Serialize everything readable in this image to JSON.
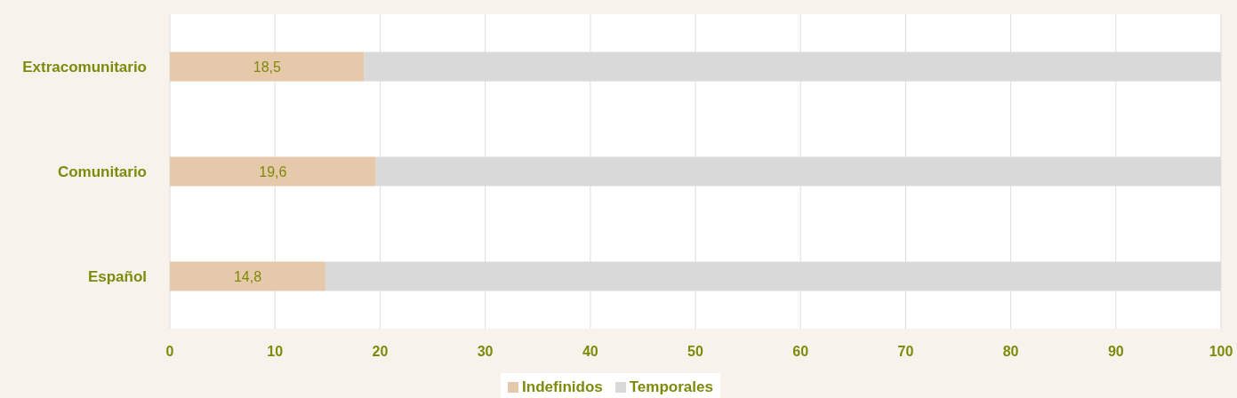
{
  "chart_data": {
    "type": "bar",
    "orientation": "horizontal",
    "stacked": true,
    "categories": [
      "Extracomunitario",
      "Comunitario",
      "Español"
    ],
    "series": [
      {
        "name": "Indefinidos",
        "color": "#e6c9aa",
        "values": [
          18.5,
          19.6,
          14.8
        ],
        "value_labels": [
          "18,5",
          "19,6",
          "14,8"
        ]
      },
      {
        "name": "Temporales",
        "color": "#d9d9d9",
        "values": [
          81.5,
          80.4,
          85.2
        ]
      }
    ],
    "xlim": [
      0,
      100
    ],
    "xticks": [
      0,
      10,
      20,
      30,
      40,
      50,
      60,
      70,
      80,
      90,
      100
    ],
    "grid": "x",
    "legend": "bottom"
  }
}
